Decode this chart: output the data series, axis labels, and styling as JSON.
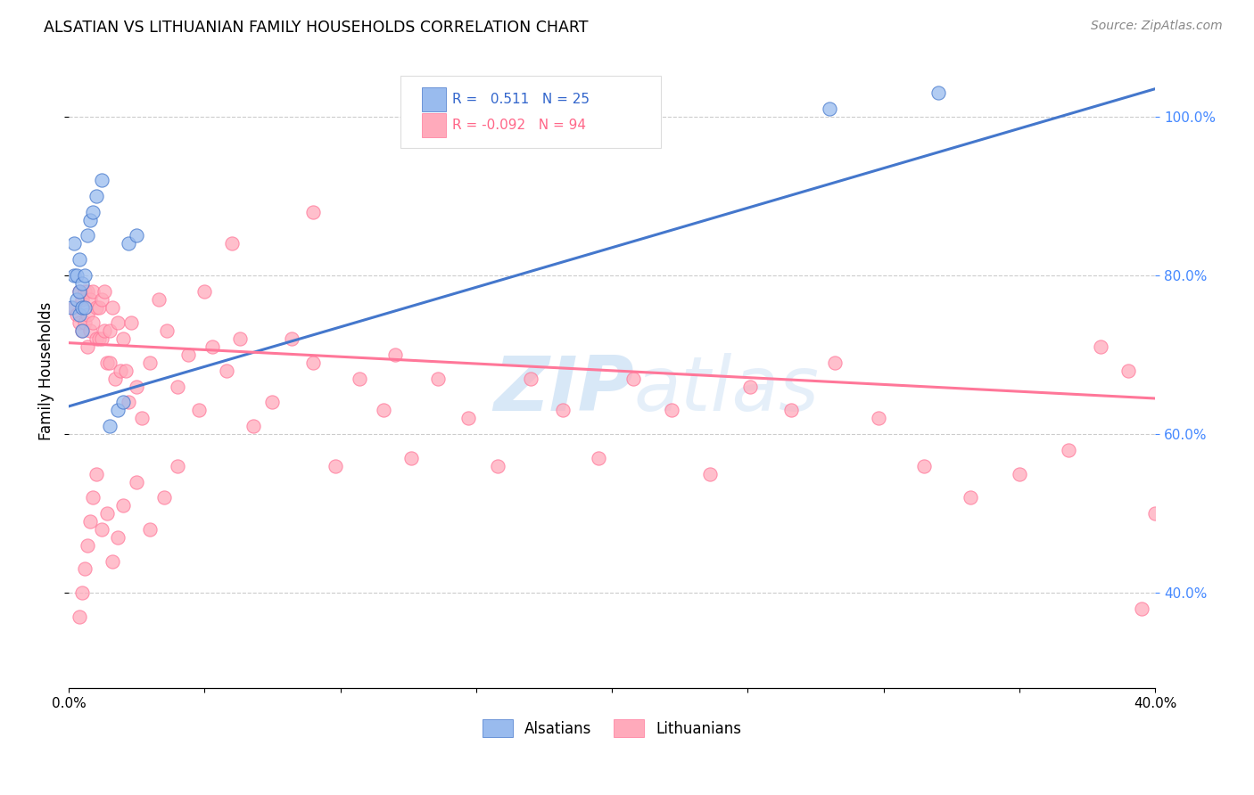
{
  "title": "ALSATIAN VS LITHUANIAN FAMILY HOUSEHOLDS CORRELATION CHART",
  "source": "Source: ZipAtlas.com",
  "ylabel": "Family Households",
  "legend_blue_label": "Alsatians",
  "legend_pink_label": "Lithuanians",
  "r_blue": "0.511",
  "n_blue": "25",
  "r_pink": "-0.092",
  "n_pink": "94",
  "blue_scatter_x": [
    0.001,
    0.002,
    0.002,
    0.003,
    0.003,
    0.004,
    0.004,
    0.004,
    0.005,
    0.005,
    0.005,
    0.006,
    0.006,
    0.007,
    0.008,
    0.009,
    0.01,
    0.012,
    0.015,
    0.018,
    0.02,
    0.022,
    0.025,
    0.28,
    0.32
  ],
  "blue_scatter_y": [
    0.76,
    0.8,
    0.84,
    0.8,
    0.77,
    0.78,
    0.82,
    0.75,
    0.76,
    0.73,
    0.79,
    0.76,
    0.8,
    0.85,
    0.87,
    0.88,
    0.9,
    0.92,
    0.61,
    0.63,
    0.64,
    0.84,
    0.85,
    1.01,
    1.03
  ],
  "pink_scatter_x": [
    0.002,
    0.003,
    0.004,
    0.004,
    0.005,
    0.005,
    0.006,
    0.006,
    0.007,
    0.007,
    0.007,
    0.008,
    0.008,
    0.009,
    0.009,
    0.01,
    0.01,
    0.011,
    0.011,
    0.012,
    0.012,
    0.013,
    0.013,
    0.014,
    0.015,
    0.015,
    0.016,
    0.017,
    0.018,
    0.019,
    0.02,
    0.021,
    0.022,
    0.023,
    0.025,
    0.027,
    0.03,
    0.033,
    0.036,
    0.04,
    0.044,
    0.048,
    0.053,
    0.058,
    0.063,
    0.068,
    0.075,
    0.082,
    0.09,
    0.098,
    0.107,
    0.116,
    0.126,
    0.136,
    0.147,
    0.158,
    0.17,
    0.182,
    0.195,
    0.208,
    0.222,
    0.236,
    0.251,
    0.266,
    0.282,
    0.298,
    0.315,
    0.332,
    0.35,
    0.368,
    0.12,
    0.09,
    0.06,
    0.05,
    0.04,
    0.035,
    0.03,
    0.025,
    0.02,
    0.018,
    0.016,
    0.014,
    0.012,
    0.01,
    0.009,
    0.008,
    0.007,
    0.006,
    0.005,
    0.004,
    0.38,
    0.39,
    0.395,
    0.4
  ],
  "pink_scatter_y": [
    0.76,
    0.75,
    0.78,
    0.74,
    0.77,
    0.73,
    0.78,
    0.74,
    0.78,
    0.75,
    0.71,
    0.77,
    0.73,
    0.78,
    0.74,
    0.76,
    0.72,
    0.76,
    0.72,
    0.77,
    0.72,
    0.78,
    0.73,
    0.69,
    0.73,
    0.69,
    0.76,
    0.67,
    0.74,
    0.68,
    0.72,
    0.68,
    0.64,
    0.74,
    0.66,
    0.62,
    0.69,
    0.77,
    0.73,
    0.66,
    0.7,
    0.63,
    0.71,
    0.68,
    0.72,
    0.61,
    0.64,
    0.72,
    0.69,
    0.56,
    0.67,
    0.63,
    0.57,
    0.67,
    0.62,
    0.56,
    0.67,
    0.63,
    0.57,
    0.67,
    0.63,
    0.55,
    0.66,
    0.63,
    0.69,
    0.62,
    0.56,
    0.52,
    0.55,
    0.58,
    0.7,
    0.88,
    0.84,
    0.78,
    0.56,
    0.52,
    0.48,
    0.54,
    0.51,
    0.47,
    0.44,
    0.5,
    0.48,
    0.55,
    0.52,
    0.49,
    0.46,
    0.43,
    0.4,
    0.37,
    0.71,
    0.68,
    0.38,
    0.5
  ],
  "blue_line_x": [
    0.0,
    0.4
  ],
  "blue_line_y": [
    0.635,
    1.035
  ],
  "pink_line_x": [
    0.0,
    0.4
  ],
  "pink_line_y": [
    0.715,
    0.645
  ],
  "blue_color": "#99BBEE",
  "pink_color": "#FFAABB",
  "blue_line_color": "#4477CC",
  "pink_line_color": "#FF7799",
  "watermark_color": "#AACCEE",
  "background_color": "#ffffff",
  "xlim": [
    0.0,
    0.4
  ],
  "ylim": [
    0.28,
    1.08
  ],
  "right_yticks": [
    0.4,
    0.6,
    0.8,
    1.0
  ],
  "grid_yticks": [
    0.4,
    0.6,
    0.8,
    1.0
  ],
  "xticks": [
    0.0,
    0.05,
    0.1,
    0.15,
    0.2,
    0.25,
    0.3,
    0.35,
    0.4
  ]
}
